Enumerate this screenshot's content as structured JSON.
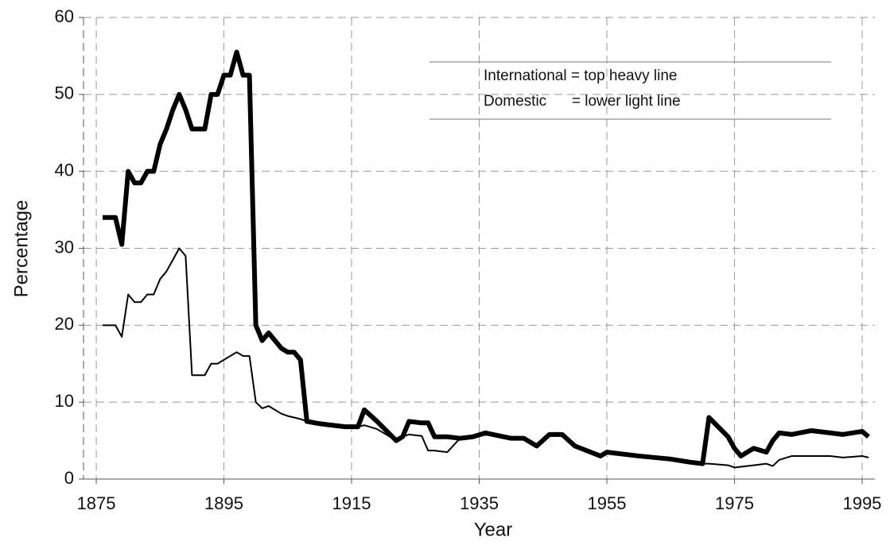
{
  "chart_data": {
    "type": "line",
    "xlabel": "Year",
    "ylabel": "Percentage",
    "x": [
      1876,
      1877,
      1878,
      1879,
      1880,
      1881,
      1882,
      1883,
      1884,
      1885,
      1886,
      1887,
      1888,
      1889,
      1890,
      1891,
      1892,
      1893,
      1894,
      1895,
      1896,
      1897,
      1898,
      1899,
      1900,
      1901,
      1902,
      1903,
      1904,
      1905,
      1906,
      1907,
      1908,
      1910,
      1912,
      1914,
      1916,
      1917,
      1919,
      1922,
      1923,
      1924,
      1926,
      1927,
      1928,
      1930,
      1932,
      1934,
      1936,
      1940,
      1942,
      1944,
      1946,
      1948,
      1950,
      1954,
      1955,
      1960,
      1965,
      1968,
      1970,
      1971,
      1974,
      1975,
      1976,
      1978,
      1980,
      1981,
      1982,
      1984,
      1987,
      1990,
      1992,
      1995,
      1996
    ],
    "series": [
      {
        "name": "International = top heavy line",
        "color": "#000000",
        "width": 6,
        "values": [
          34,
          34,
          34,
          30.5,
          40,
          38.5,
          38.5,
          40,
          40,
          43.5,
          45.5,
          48,
          50,
          48,
          45.5,
          45.5,
          45.5,
          50,
          50,
          52.5,
          52.5,
          55.5,
          52.5,
          52.5,
          20,
          18,
          19,
          18,
          17,
          16.5,
          16.5,
          15.5,
          7.5,
          7.2,
          7,
          6.8,
          6.8,
          9,
          7.5,
          5,
          5.5,
          7.5,
          7.3,
          7.3,
          5.5,
          5.5,
          5.3,
          5.5,
          6,
          5.3,
          5.3,
          4.3,
          5.8,
          5.8,
          4.3,
          3,
          3.5,
          3,
          2.6,
          2.2,
          2,
          8,
          5.5,
          4,
          3,
          4,
          3.5,
          5,
          6,
          5.8,
          6.3,
          6,
          5.8,
          6.2,
          5.5
        ]
      },
      {
        "name": "Domestic      = lower light line",
        "color": "#000000",
        "width": 2,
        "values": [
          20,
          20,
          20,
          18.5,
          24,
          23,
          23,
          24,
          24,
          26,
          27,
          28.5,
          30,
          29,
          13.5,
          13.5,
          13.5,
          15,
          15,
          15.5,
          16,
          16.5,
          16,
          16,
          10,
          9.2,
          9.5,
          9,
          8.5,
          8.2,
          8,
          7.8,
          7.5,
          7.2,
          7,
          6.8,
          6.8,
          7,
          6.5,
          5,
          5.5,
          5.8,
          5.6,
          3.7,
          3.7,
          3.5,
          5.3,
          5.5,
          6,
          5.3,
          5.3,
          4.3,
          5.8,
          5.8,
          4.3,
          3,
          3.5,
          3,
          2.6,
          2.2,
          2,
          2,
          1.8,
          1.5,
          1.6,
          1.8,
          2,
          1.7,
          2.5,
          3,
          3,
          3,
          2.8,
          3,
          2.8
        ]
      }
    ],
    "xlim": [
      1873,
      1997
    ],
    "xticks": [
      1875,
      1895,
      1915,
      1935,
      1955,
      1975,
      1995
    ],
    "ylim": [
      0,
      60
    ],
    "yticks": [
      0,
      10,
      20,
      30,
      40,
      50,
      60
    ],
    "grid": true
  }
}
